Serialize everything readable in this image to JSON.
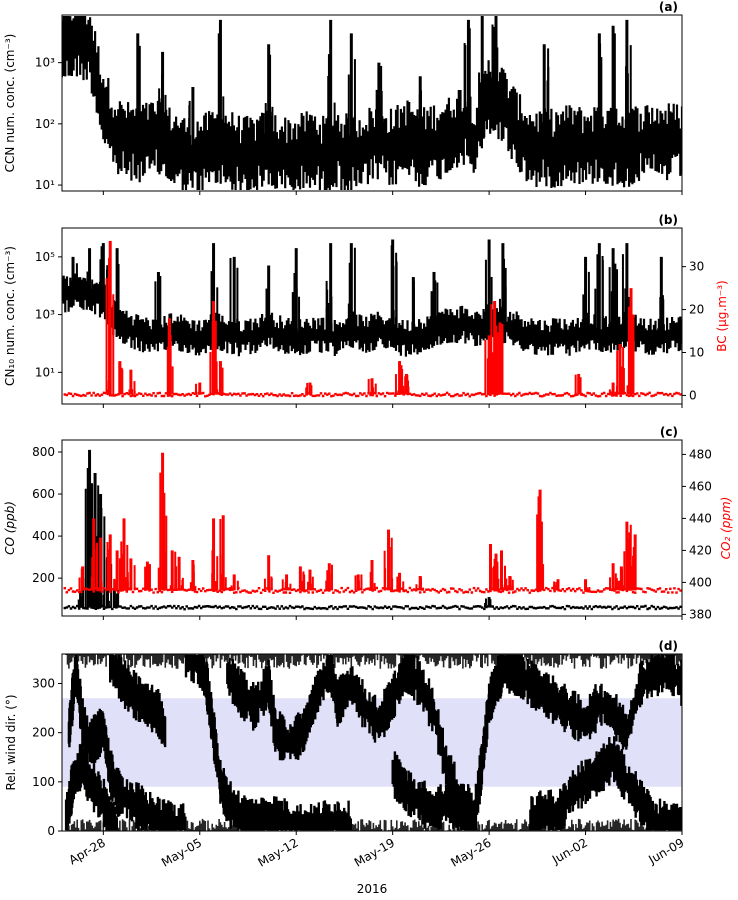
{
  "chart_data": [
    {
      "id": "a",
      "type": "scatter",
      "panel_label": "(a)",
      "ylabel": "CCN num. conc. (cm⁻³)",
      "yscale": "log",
      "ylim": [
        8,
        6000
      ],
      "yticks": [
        {
          "v": 10,
          "label": "10¹"
        },
        {
          "v": 100,
          "label": "10²"
        },
        {
          "v": 1000,
          "label": "10³"
        }
      ],
      "series": [
        {
          "name": "CCN",
          "color": "#000000",
          "baseline": [
            2000,
            2500,
            2000,
            200,
            60,
            50,
            50,
            60,
            40,
            30,
            30,
            40,
            40,
            30,
            30,
            40,
            30,
            30,
            40,
            30,
            40,
            30,
            40,
            50,
            40,
            60,
            40,
            50,
            60,
            100,
            60,
            300,
            200,
            80,
            40,
            40,
            40,
            50,
            40,
            50,
            40,
            40,
            50,
            50,
            50,
            50
          ],
          "spikes": [
            [
              0.2,
              5000
            ],
            [
              1.5,
              5000
            ],
            [
              5.5,
              3000
            ],
            [
              7.3,
              1500
            ],
            [
              9.5,
              400
            ],
            [
              11.5,
              5000
            ],
            [
              15,
              2000
            ],
            [
              19.5,
              5000
            ],
            [
              21,
              3000
            ],
            [
              23,
              1000
            ],
            [
              26,
              600
            ],
            [
              29.5,
              5000
            ],
            [
              30.5,
              6000
            ],
            [
              31.5,
              6000
            ],
            [
              35,
              2000
            ],
            [
              39,
              3000
            ],
            [
              40,
              4000
            ],
            [
              41,
              5000
            ]
          ]
        }
      ]
    },
    {
      "id": "b",
      "type": "scatter",
      "panel_label": "(b)",
      "ylabel": "CN₁₀ num. conc. (cm⁻³)",
      "yscale": "log",
      "ylim": [
        0.8,
        1000000
      ],
      "yticks": [
        {
          "v": 10,
          "label": "10¹"
        },
        {
          "v": 1000,
          "label": "10³"
        },
        {
          "v": 100000,
          "label": "10⁵"
        }
      ],
      "y2label": "BC (µg.m⁻³)",
      "y2lim": [
        -2,
        39
      ],
      "y2ticks": [
        0,
        10,
        20,
        30
      ],
      "series": [
        {
          "name": "CN10",
          "color": "#000000",
          "baseline": [
            5000,
            6000,
            5000,
            3000,
            500,
            300,
            200,
            150,
            300,
            200,
            150,
            300,
            200,
            150,
            200,
            300,
            200,
            150,
            200,
            200,
            150,
            300,
            200,
            300,
            200,
            150,
            200,
            300,
            400,
            500,
            300,
            600,
            400,
            300,
            200,
            150,
            200,
            150,
            300,
            200,
            200,
            300,
            200,
            150,
            200,
            200
          ],
          "spikes": [
            [
              0.8,
              100000
            ],
            [
              2,
              200000
            ],
            [
              3,
              300000
            ],
            [
              4,
              200000
            ],
            [
              7,
              30000
            ],
            [
              11,
              300000
            ],
            [
              12.5,
              100000
            ],
            [
              15,
              50000
            ],
            [
              17,
              200000
            ],
            [
              19.5,
              300000
            ],
            [
              21,
              300000
            ],
            [
              24,
              400000
            ],
            [
              25.5,
              20000
            ],
            [
              27,
              30000
            ],
            [
              31,
              400000
            ],
            [
              32,
              300000
            ],
            [
              38,
              100000
            ],
            [
              39,
              300000
            ],
            [
              40,
              200000
            ],
            [
              41,
              300000
            ],
            [
              43.5,
              100000
            ]
          ]
        },
        {
          "name": "BC",
          "color": "#ff0000",
          "axis": "right",
          "baseline": 0.2,
          "spikes": [
            [
              3.5,
              36
            ],
            [
              4.2,
              8
            ],
            [
              5,
              6
            ],
            [
              7.8,
              18
            ],
            [
              10,
              3
            ],
            [
              11,
              22
            ],
            [
              11.5,
              8
            ],
            [
              18,
              3
            ],
            [
              22.5,
              4
            ],
            [
              24.5,
              8
            ],
            [
              25,
              5
            ],
            [
              31,
              14
            ],
            [
              31.4,
              22
            ],
            [
              31.8,
              17
            ],
            [
              37.5,
              5
            ],
            [
              40,
              3
            ],
            [
              40.5,
              12
            ],
            [
              41.3,
              25
            ]
          ]
        }
      ]
    },
    {
      "id": "c",
      "type": "line",
      "panel_label": "(c)",
      "ylabel": "CO (ppb)",
      "ylim": [
        20,
        857
      ],
      "yticks": [
        200,
        400,
        600,
        800
      ],
      "y2label": "CO₂ (ppm)",
      "y2lim": [
        379,
        489
      ],
      "y2ticks": [
        380,
        400,
        420,
        440,
        460,
        480
      ],
      "series": [
        {
          "name": "CO",
          "color": "#000000",
          "baseline": 60,
          "spikes": [
            [
              1.5,
              200
            ],
            [
              2,
              810
            ],
            [
              2.4,
              700
            ],
            [
              2.8,
              600
            ],
            [
              3.3,
              300
            ],
            [
              3.8,
              150
            ],
            [
              31,
              110
            ]
          ]
        },
        {
          "name": "CO2",
          "color": "#ff0000",
          "axis": "right",
          "baseline": 395,
          "spikes": [
            [
              1.5,
              410
            ],
            [
              2.3,
              440
            ],
            [
              2.8,
              428
            ],
            [
              3.5,
              430
            ],
            [
              4,
              420
            ],
            [
              4.5,
              440
            ],
            [
              5,
              415
            ],
            [
              6.2,
              413
            ],
            [
              7.3,
              481
            ],
            [
              8,
              420
            ],
            [
              8.5,
              416
            ],
            [
              9.5,
              414
            ],
            [
              11,
              440
            ],
            [
              11.7,
              442
            ],
            [
              12.5,
              405
            ],
            [
              15,
              417
            ],
            [
              16.3,
              405
            ],
            [
              17.3,
              410
            ],
            [
              18,
              408
            ],
            [
              19.4,
              412
            ],
            [
              21.5,
              405
            ],
            [
              22.5,
              414
            ],
            [
              23.7,
              433
            ],
            [
              24.5,
              406
            ],
            [
              26,
              404
            ],
            [
              31.1,
              424
            ],
            [
              31.5,
              418
            ],
            [
              31.9,
              420
            ],
            [
              32.5,
              404
            ],
            [
              34.7,
              458
            ],
            [
              36,
              402
            ],
            [
              38,
              402
            ],
            [
              40,
              412
            ],
            [
              40.6,
              410
            ],
            [
              41,
              438
            ],
            [
              41.6,
              430
            ]
          ]
        }
      ]
    },
    {
      "id": "d",
      "type": "scatter",
      "panel_label": "(d)",
      "ylabel": "Rel. wind dir.  (°)",
      "ylim": [
        0,
        360
      ],
      "yticks": [
        0,
        100,
        200,
        300
      ],
      "shaded_band": {
        "from": 90,
        "to": 270,
        "color": "#e0e0f8"
      },
      "series": [
        {
          "name": "Rel. wind dir.",
          "color": "#000000",
          "traces": [
            [
              [
                0.5,
                200
              ],
              [
                1,
                330
              ],
              [
                1.5,
                220
              ],
              [
                2,
                180
              ],
              [
                2.5,
                190
              ],
              [
                3,
                210
              ],
              [
                3.5,
                120
              ],
              [
                4,
                80
              ],
              [
                5,
                60
              ],
              [
                6,
                40
              ],
              [
                7,
                20
              ],
              [
                8,
                15
              ],
              [
                9,
                10
              ]
            ],
            [
              [
                0.3,
                20
              ],
              [
                0.8,
                100
              ],
              [
                1.5,
                140
              ],
              [
                2,
                100
              ],
              [
                3,
                60
              ],
              [
                3.5,
                20
              ],
              [
                4,
                5
              ]
            ],
            [
              [
                3.5,
                340
              ],
              [
                4.5,
                300
              ],
              [
                5.5,
                270
              ],
              [
                6.5,
                250
              ],
              [
                7,
                240
              ],
              [
                7.5,
                200
              ]
            ],
            [
              [
                9,
                360
              ],
              [
                10,
                340
              ],
              [
                10.5,
                300
              ],
              [
                11,
                200
              ],
              [
                11.5,
                100
              ],
              [
                12,
                60
              ],
              [
                13,
                30
              ],
              [
                14,
                20
              ],
              [
                15,
                30
              ],
              [
                16,
                20
              ],
              [
                17,
                10
              ],
              [
                18,
                5
              ],
              [
                19,
                15
              ],
              [
                20,
                20
              ],
              [
                21,
                10
              ]
            ],
            [
              [
                12,
                320
              ],
              [
                13,
                280
              ],
              [
                14,
                250
              ],
              [
                15,
                300
              ],
              [
                15.5,
                200
              ],
              [
                16.5,
                180
              ],
              [
                17.5,
                200
              ],
              [
                18.5,
                280
              ],
              [
                19.5,
                330
              ],
              [
                20,
                260
              ],
              [
                21,
                300
              ],
              [
                22,
                250
              ],
              [
                23,
                220
              ],
              [
                24,
                270
              ],
              [
                25,
                330
              ],
              [
                26,
                300
              ],
              [
                27,
                240
              ],
              [
                28,
                120
              ],
              [
                29,
                60
              ],
              [
                30,
                40
              ],
              [
                30.5,
                140
              ],
              [
                31,
                260
              ],
              [
                31.5,
                300
              ],
              [
                32,
                330
              ],
              [
                33,
                320
              ],
              [
                34,
                300
              ],
              [
                35,
                280
              ],
              [
                36,
                260
              ],
              [
                37,
                240
              ],
              [
                38,
                220
              ],
              [
                39,
                260
              ],
              [
                40,
                240
              ],
              [
                41,
                200
              ],
              [
                42,
                300
              ],
              [
                43,
                320
              ],
              [
                44,
                330
              ],
              [
                45,
                300
              ]
            ],
            [
              [
                24,
                120
              ],
              [
                25,
                80
              ],
              [
                26,
                60
              ],
              [
                27,
                40
              ],
              [
                28,
                60
              ],
              [
                29,
                30
              ],
              [
                30,
                20
              ]
            ],
            [
              [
                34,
                20
              ],
              [
                35,
                40
              ],
              [
                36,
                30
              ],
              [
                37,
                80
              ],
              [
                38,
                100
              ],
              [
                39,
                120
              ],
              [
                40,
                150
              ],
              [
                41,
                100
              ],
              [
                42,
                60
              ],
              [
                43,
                20
              ],
              [
                44,
                10
              ],
              [
                45,
                5
              ]
            ]
          ]
        }
      ]
    }
  ],
  "xaxis": {
    "label": "2016",
    "start": "Apr-25",
    "days": 45,
    "ticks": [
      {
        "day": 3,
        "label": "Apr-28"
      },
      {
        "day": 10,
        "label": "May-05"
      },
      {
        "day": 17,
        "label": "May-12"
      },
      {
        "day": 24,
        "label": "May-19"
      },
      {
        "day": 31,
        "label": "May-26"
      },
      {
        "day": 38,
        "label": "Jun-02"
      },
      {
        "day": 45,
        "label": "Jun-09"
      }
    ]
  }
}
